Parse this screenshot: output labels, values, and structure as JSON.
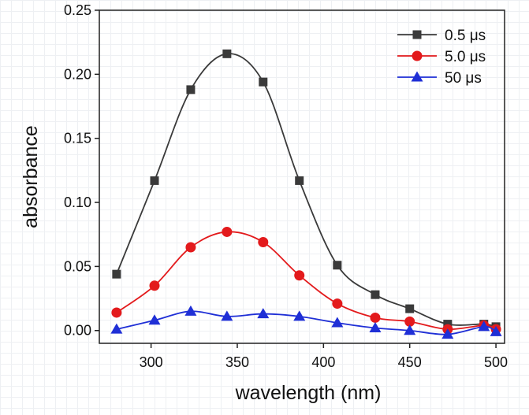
{
  "chart_data": {
    "type": "line",
    "xlabel": "wavelength (nm)",
    "ylabel": "absorbance",
    "xlim": [
      270,
      505
    ],
    "ylim": [
      -0.01,
      0.25
    ],
    "x_ticks": [
      300,
      350,
      400,
      450,
      500
    ],
    "y_ticks": [
      0.0,
      0.05,
      0.1,
      0.15,
      0.2,
      0.25
    ],
    "x_tick_labels": [
      "300",
      "350",
      "400",
      "450",
      "500"
    ],
    "y_tick_labels": [
      "0.00",
      "0.05",
      "0.10",
      "0.15",
      "0.20",
      "0.25"
    ],
    "grid": false,
    "legend_position": "top-right",
    "series": [
      {
        "name": "0.5 μs",
        "color": "#3a3a3a",
        "marker": "square",
        "x": [
          280,
          302,
          323,
          344,
          365,
          386,
          408,
          430,
          450,
          472,
          493,
          500
        ],
        "y": [
          0.044,
          0.117,
          0.188,
          0.216,
          0.194,
          0.117,
          0.051,
          0.028,
          0.017,
          0.005,
          0.005,
          0.003
        ]
      },
      {
        "name": "5.0 μs",
        "color": "#e31a1c",
        "marker": "circle",
        "x": [
          280,
          302,
          323,
          344,
          365,
          386,
          408,
          430,
          450,
          472,
          493,
          500
        ],
        "y": [
          0.014,
          0.035,
          0.065,
          0.077,
          0.069,
          0.043,
          0.021,
          0.01,
          0.007,
          0.001,
          0.004,
          0.001
        ]
      },
      {
        "name": "50  μs",
        "color": "#1f2fd6",
        "marker": "triangle",
        "x": [
          280,
          302,
          323,
          344,
          365,
          386,
          408,
          430,
          450,
          472,
          493,
          500
        ],
        "y": [
          0.001,
          0.008,
          0.015,
          0.011,
          0.013,
          0.011,
          0.006,
          0.002,
          0.0,
          -0.003,
          0.003,
          -0.001
        ]
      }
    ]
  }
}
